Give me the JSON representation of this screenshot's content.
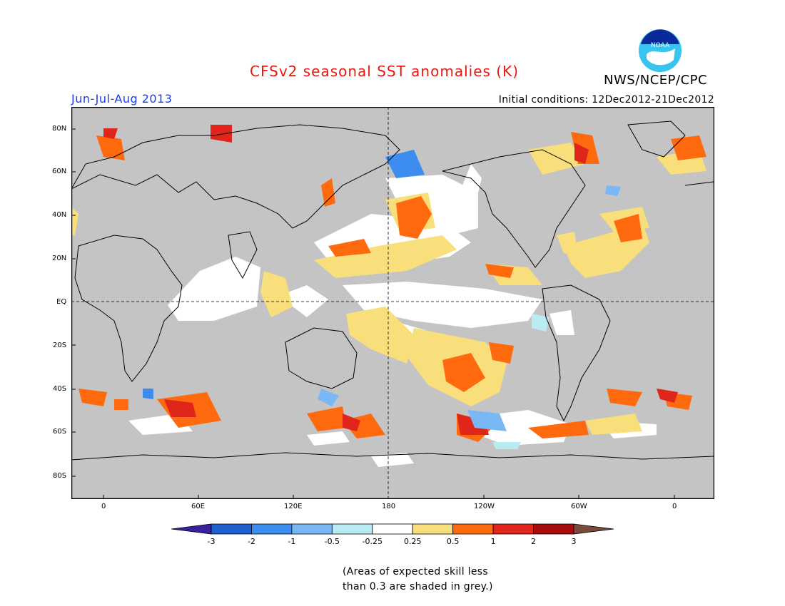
{
  "title": "CFSv2 seasonal SST anomalies (K)",
  "organization": "NWS/NCEP/CPC",
  "logo_text": "NOAA",
  "period": "Jun-Jul-Aug 2013",
  "initial_conditions": "Initial conditions: 12Dec2012-21Dec2012",
  "lat_labels": [
    "80N",
    "60N",
    "40N",
    "20N",
    "EQ",
    "20S",
    "40S",
    "60S",
    "80S"
  ],
  "lon_labels": [
    "0",
    "60E",
    "120E",
    "180",
    "120W",
    "60W",
    "0"
  ],
  "colorbar": {
    "labels": [
      "-3",
      "-2",
      "-1",
      "-0.5",
      "-0.25",
      "0.25",
      "0.5",
      "1",
      "2",
      "3"
    ],
    "colors": [
      "#3a1fa0",
      "#1f5fd0",
      "#3d8cef",
      "#7ab8f5",
      "#b8ecf2",
      "#ffffff",
      "#f9df7c",
      "#ff6a0f",
      "#e0251a",
      "#a90c0c",
      "#7a4a3a"
    ]
  },
  "note_lines": [
    "(Areas of expected skill less",
    "than 0.3 are shaded in grey.)"
  ],
  "colors": {
    "grey_mask": "#c4c4c4",
    "title": "#e8170f",
    "period": "#1a3cf0"
  }
}
